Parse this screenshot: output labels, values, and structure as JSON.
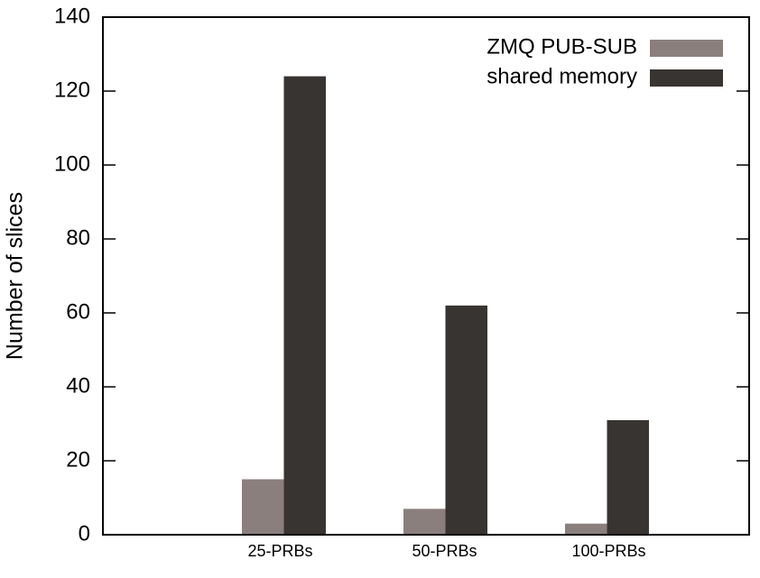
{
  "chart_data": {
    "type": "bar",
    "ylabel": "Number of slices",
    "categories": [
      "25-PRBs",
      "50-PRBs",
      "100-PRBs"
    ],
    "series": [
      {
        "name": "ZMQ PUB-SUB",
        "color": "#8b7f7d",
        "values": [
          15,
          7,
          3
        ]
      },
      {
        "name": "shared memory",
        "color": "#383432",
        "values": [
          124,
          62,
          31
        ]
      }
    ],
    "ylim": [
      0,
      140
    ],
    "yticks": [
      0,
      20,
      40,
      60,
      80,
      100,
      120,
      140
    ],
    "legend": "top right"
  }
}
